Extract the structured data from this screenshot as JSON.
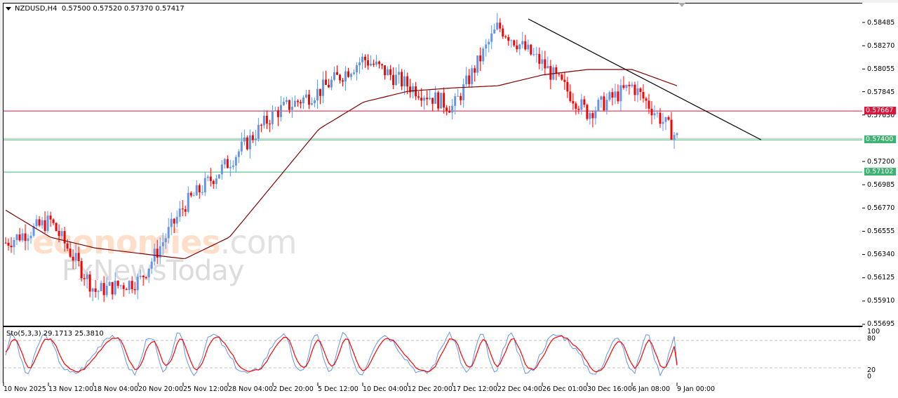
{
  "header": {
    "symbol": "NZDUSD,H4",
    "ohlc": "0.57500 0.57520 0.57370 0.57417"
  },
  "price_axis": {
    "labels": [
      "0.58485",
      "0.58270",
      "0.58055",
      "0.57845",
      "0.57630",
      "0.57200",
      "0.56985",
      "0.56770",
      "0.56555",
      "0.56340",
      "0.56125",
      "0.55910",
      "0.55695"
    ]
  },
  "levels": {
    "resistance": {
      "value": "0.57667",
      "color": "#dc143c"
    },
    "support1": {
      "value": "0.57400",
      "color": "#3cb371"
    },
    "support2": {
      "value": "0.57102",
      "color": "#3cb371"
    }
  },
  "stochastic": {
    "label": "Sto(5,3,3) 29.1713 25.3810",
    "axis": [
      "100",
      "80",
      "20",
      "0"
    ]
  },
  "time_axis": {
    "labels": [
      "10 Nov 2025",
      "13 Nov 12:00",
      "18 Nov 04:00",
      "20 Nov 20:00",
      "25 Nov 12:00",
      "28 Nov 04:00",
      "2 Dec 20:00",
      "5 Dec 12:00",
      "10 Dec 04:00",
      "12 Dec 20:00",
      "17 Dec 12:00",
      "22 Dec 04:00",
      "26 Dec 01:00",
      "30 Dec 16:00",
      "6 Jan 08:00",
      "9 Jan 00:00"
    ]
  },
  "watermark": {
    "line1a": "economies",
    "line1b": ".com",
    "line2": "FxNewsToday"
  },
  "colors": {
    "bull": "#6495ed",
    "bear": "#ff0000",
    "ma": "#800000",
    "trendline": "#000000",
    "stoch_main": "#6495ed",
    "stoch_signal": "#ff0000"
  },
  "chart_data": {
    "type": "candlestick",
    "title": "NZDUSD,H4",
    "ohlc_last": {
      "open": 0.575,
      "high": 0.5752,
      "low": 0.5737,
      "close": 0.57417
    },
    "ylim": [
      0.5565,
      0.5862
    ],
    "y_ticks": [
      0.58485,
      0.5827,
      0.58055,
      0.57845,
      0.5763,
      0.572,
      0.56985,
      0.5677,
      0.56555,
      0.5634,
      0.56125,
      0.5591,
      0.55695
    ],
    "x_ticks": [
      "10 Nov 2025",
      "13 Nov 12:00",
      "18 Nov 04:00",
      "20 Nov 20:00",
      "25 Nov 12:00",
      "28 Nov 04:00",
      "2 Dec 20:00",
      "5 Dec 12:00",
      "10 Dec 04:00",
      "12 Dec 20:00",
      "17 Dec 12:00",
      "22 Dec 04:00",
      "26 Dec 01:00",
      "30 Dec 16:00",
      "6 Jan 08:00",
      "9 Jan 00:00"
    ],
    "horizontal_lines": [
      {
        "price": 0.57667,
        "color": "#dc143c",
        "label": "resistance"
      },
      {
        "price": 0.574,
        "color": "#3cb371",
        "label": "support"
      },
      {
        "price": 0.57102,
        "color": "#3cb371",
        "label": "support"
      }
    ],
    "trendline": {
      "from": {
        "date": "22 Dec",
        "price": 0.58485
      },
      "to": {
        "date": "12 Jan (proj)",
        "price": 0.574
      }
    },
    "approx_closes": {
      "x": [
        "10 Nov",
        "13 Nov",
        "18 Nov",
        "20 Nov",
        "25 Nov",
        "28 Nov",
        "2 Dec",
        "5 Dec",
        "10 Dec",
        "12 Dec",
        "17 Dec",
        "22 Dec",
        "26 Dec",
        "30 Dec",
        "6 Jan",
        "9 Jan"
      ],
      "values": [
        0.5645,
        0.5665,
        0.56,
        0.561,
        0.568,
        0.572,
        0.5765,
        0.5785,
        0.5815,
        0.579,
        0.577,
        0.5845,
        0.581,
        0.5765,
        0.579,
        0.5742
      ]
    },
    "moving_average": {
      "color": "#800000",
      "approx": [
        0.5675,
        0.565,
        0.564,
        0.5635,
        0.563,
        0.565,
        0.57,
        0.575,
        0.5775,
        0.5785,
        0.5788,
        0.579,
        0.58,
        0.5805,
        0.5805,
        0.579
      ]
    },
    "indicator": {
      "name": "Stochastic (5,3,3)",
      "main": 29.1713,
      "signal": 25.381,
      "levels": [
        80,
        20
      ],
      "range": [
        0,
        100
      ]
    }
  }
}
